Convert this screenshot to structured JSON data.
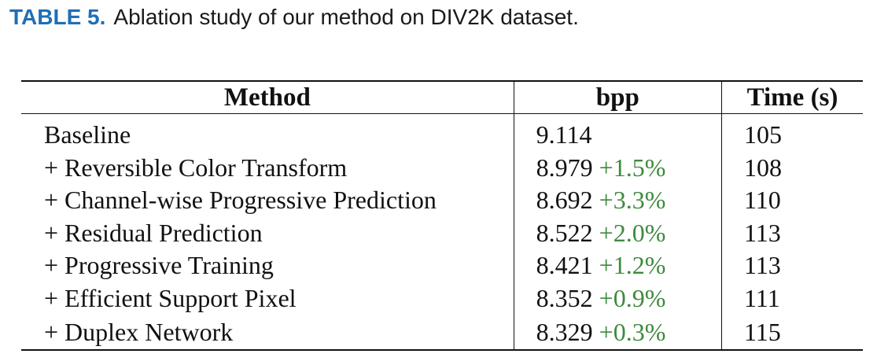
{
  "caption": {
    "label": "TABLE 5.",
    "text": "Ablation study of our method on DIV2K dataset."
  },
  "table": {
    "headers": [
      "Method",
      "bpp",
      "Time (s)"
    ],
    "rows": [
      {
        "method": "Baseline",
        "bpp": "9.114",
        "gain": "",
        "time": "105"
      },
      {
        "method": "+ Reversible Color Transform",
        "bpp": "8.979",
        "gain": "+1.5%",
        "time": "108"
      },
      {
        "method": "+ Channel-wise Progressive Prediction",
        "bpp": "8.692",
        "gain": "+3.3%",
        "time": "110"
      },
      {
        "method": "+ Residual Prediction",
        "bpp": "8.522",
        "gain": "+2.0%",
        "time": "113"
      },
      {
        "method": "+ Progressive Training",
        "bpp": "8.421",
        "gain": "+1.2%",
        "time": "113"
      },
      {
        "method": "+ Efficient Support Pixel",
        "bpp": "8.352",
        "gain": "+0.9%",
        "time": "111"
      },
      {
        "method": "+ Duplex Network",
        "bpp": "8.329",
        "gain": "+0.3%",
        "time": "115"
      }
    ]
  },
  "colors": {
    "label": "#1f6fb5",
    "gain": "#3d8a3d"
  }
}
